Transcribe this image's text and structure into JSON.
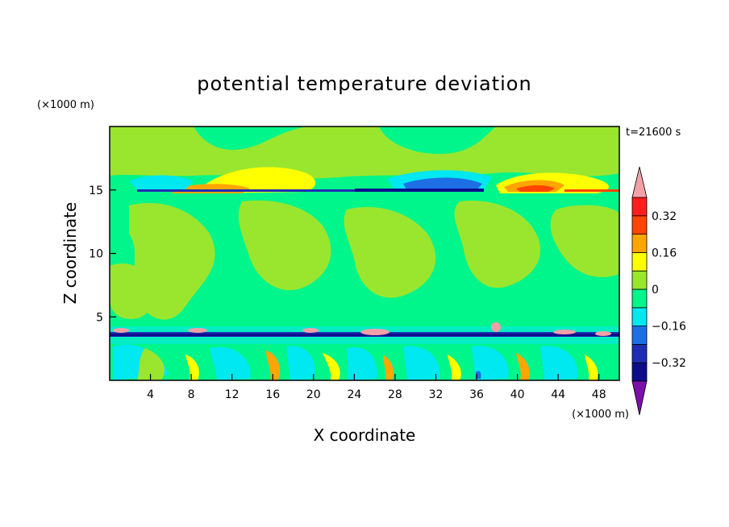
{
  "chart_data": {
    "type": "heatmap",
    "title": "potential temperature deviation",
    "xlabel": "X coordinate",
    "ylabel": "Z coordinate",
    "x_unit_label": "(×1000 m)",
    "y_unit_label": "(×1000 m)",
    "time_label": "t=21600 s",
    "xlim": [
      0,
      50
    ],
    "ylim": [
      0,
      20
    ],
    "x_ticks": [
      4,
      8,
      12,
      16,
      20,
      24,
      28,
      32,
      36,
      40,
      44,
      48
    ],
    "y_ticks": [
      5,
      10,
      15
    ],
    "colorbar": {
      "levels": [
        -0.4,
        -0.32,
        -0.24,
        -0.16,
        -0.08,
        0,
        0.08,
        0.16,
        0.24,
        0.32,
        0.4
      ],
      "tick_values": [
        -0.32,
        -0.16,
        0,
        0.16,
        0.32
      ],
      "tick_labels": [
        "−0.32",
        "−0.16",
        "0",
        "0.16",
        "0.32"
      ],
      "colors": [
        "#0d0d8c",
        "#1f2db4",
        "#1e6ee6",
        "#00e8f0",
        "#00f58a",
        "#9ae62e",
        "#ffff00",
        "#ffa500",
        "#ff4500",
        "#ff1e1e"
      ],
      "under_color": "#7a10a8",
      "over_color": "#f2a0a8"
    },
    "features": [
      {
        "z": 15,
        "description_levels": [
          -0.32,
          0.32
        ]
      },
      {
        "z": 3.5,
        "description_levels": [
          -0.32,
          0.4
        ]
      }
    ]
  }
}
